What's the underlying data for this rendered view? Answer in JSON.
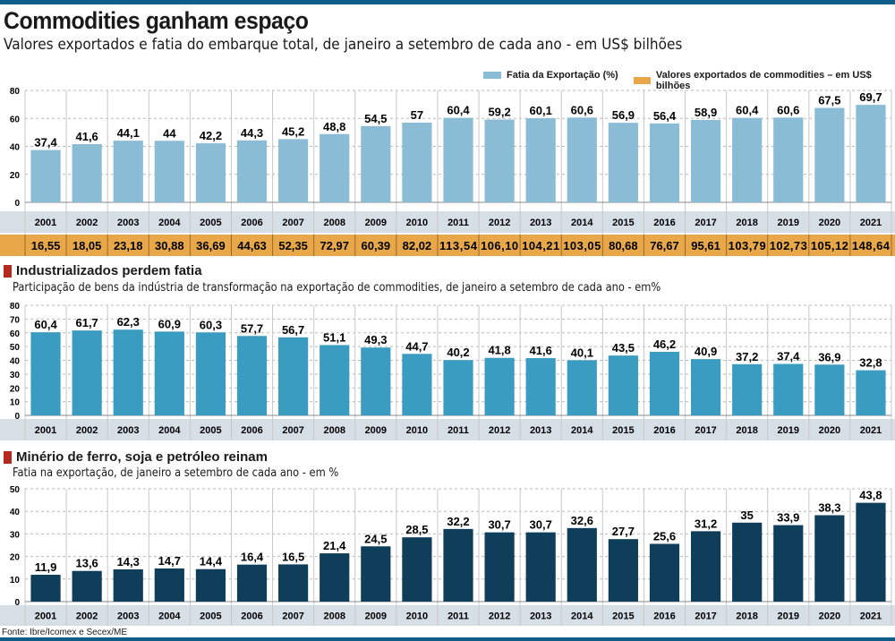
{
  "header": {
    "title": "Commodities ganham espaço",
    "subtitle": "Valores exportados e fatia do embarque total, de janeiro a setembro de cada ano - em US$ bilhões"
  },
  "colors": {
    "top_bar": "#0d5f8a",
    "share_bars": "#8bbcd6",
    "values_row": "#e8a84a",
    "industry_bars": "#3a9cc0",
    "mineral_bars": "#0f3e5a",
    "year_row": "#d7dfe6",
    "section_marker": "#b5291f"
  },
  "legend": [
    {
      "label": "Fatia da Exportação (%)",
      "color": "#8bbcd6"
    },
    {
      "label": "Valores exportados de commodities – em US$ bilhões",
      "color": "#e8a84a"
    }
  ],
  "chart_data": [
    {
      "type": "bar",
      "title": "Commodities ganham espaço",
      "series_name": "Fatia da Exportação (%)",
      "categories": [
        "2001",
        "2002",
        "2003",
        "2004",
        "2005",
        "2006",
        "2007",
        "2008",
        "2009",
        "2010",
        "2011",
        "2012",
        "2013",
        "2014",
        "2015",
        "2016",
        "2017",
        "2018",
        "2019",
        "2020",
        "2021"
      ],
      "values": [
        37.4,
        41.6,
        44.1,
        44,
        42.2,
        44.3,
        45.2,
        48.8,
        54.5,
        57,
        60.4,
        59.2,
        60.1,
        60.6,
        56.9,
        56.4,
        58.9,
        60.4,
        60.6,
        67.5,
        69.7
      ],
      "labels": [
        "37,4",
        "41,6",
        "44,1",
        "44",
        "42,2",
        "44,3",
        "45,2",
        "48,8",
        "54,5",
        "57",
        "60,4",
        "59,2",
        "60,1",
        "60,6",
        "56,9",
        "56,4",
        "58,9",
        "60,4",
        "60,6",
        "67,5",
        "69,7"
      ],
      "yticks": [
        "80",
        "60",
        "40",
        "20",
        "0"
      ],
      "ylim": [
        0,
        80
      ],
      "grid": true,
      "table_row": {
        "name": "Valores exportados de commodities – em US$ bilhões",
        "values": [
          "16,55",
          "18,05",
          "23,18",
          "30,88",
          "36,69",
          "44,63",
          "52,35",
          "72,97",
          "60,39",
          "82,02",
          "113,54",
          "106,10",
          "104,21",
          "103,05",
          "80,68",
          "76,67",
          "95,61",
          "103,79",
          "102,73",
          "105,12",
          "148,64"
        ]
      }
    },
    {
      "type": "bar",
      "title": "Industrializados perdem fatia",
      "subtitle": "Participação de bens da indústria de transformação na exportação de commodities, de janeiro a setembro de cada ano - em%",
      "categories": [
        "2001",
        "2002",
        "2003",
        "2004",
        "2005",
        "2006",
        "2007",
        "2008",
        "2009",
        "2010",
        "2011",
        "2012",
        "2013",
        "2014",
        "2015",
        "2016",
        "2017",
        "2018",
        "2019",
        "2020",
        "2021"
      ],
      "values": [
        60.4,
        61.7,
        62.3,
        60.9,
        60.3,
        57.7,
        56.7,
        51.1,
        49.3,
        44.7,
        40.2,
        41.8,
        41.6,
        40.1,
        43.5,
        46.2,
        40.9,
        37.2,
        37.4,
        36.9,
        32.8
      ],
      "labels": [
        "60,4",
        "61,7",
        "62,3",
        "60,9",
        "60,3",
        "57,7",
        "56,7",
        "51,1",
        "49,3",
        "44,7",
        "40,2",
        "41,8",
        "41,6",
        "40,1",
        "43,5",
        "46,2",
        "40,9",
        "37,2",
        "37,4",
        "36,9",
        "32,8"
      ],
      "yticks": [
        "80",
        "70",
        "60",
        "50",
        "40",
        "30",
        "20",
        "10",
        "0"
      ],
      "ylim": [
        0,
        80
      ],
      "grid": true
    },
    {
      "type": "bar",
      "title": "Minério de ferro, soja e petróleo reinam",
      "subtitle": "Fatia na exportação, de janeiro a setembro de cada ano  - em %",
      "categories": [
        "2001",
        "2002",
        "2003",
        "2004",
        "2005",
        "2006",
        "2007",
        "2008",
        "2009",
        "2010",
        "2011",
        "2012",
        "2013",
        "2014",
        "2015",
        "2016",
        "2017",
        "2018",
        "2019",
        "2020",
        "2021"
      ],
      "values": [
        11.9,
        13.6,
        14.3,
        14.7,
        14.4,
        16.4,
        16.5,
        21.4,
        24.5,
        28.5,
        32.2,
        30.7,
        30.7,
        32.6,
        27.7,
        25.6,
        31.2,
        35,
        33.9,
        38.3,
        43.8
      ],
      "labels": [
        "11,9",
        "13,6",
        "14,3",
        "14,7",
        "14,4",
        "16,4",
        "16,5",
        "21,4",
        "24,5",
        "28,5",
        "32,2",
        "30,7",
        "30,7",
        "32,6",
        "27,7",
        "25,6",
        "31,2",
        "35",
        "33,9",
        "38,3",
        "43,8"
      ],
      "yticks": [
        "50",
        "40",
        "30",
        "20",
        "10",
        "0"
      ],
      "ylim": [
        0,
        50
      ],
      "grid": true
    }
  ],
  "source": "Fonte: Ibre/Icomex e Secex/ME"
}
